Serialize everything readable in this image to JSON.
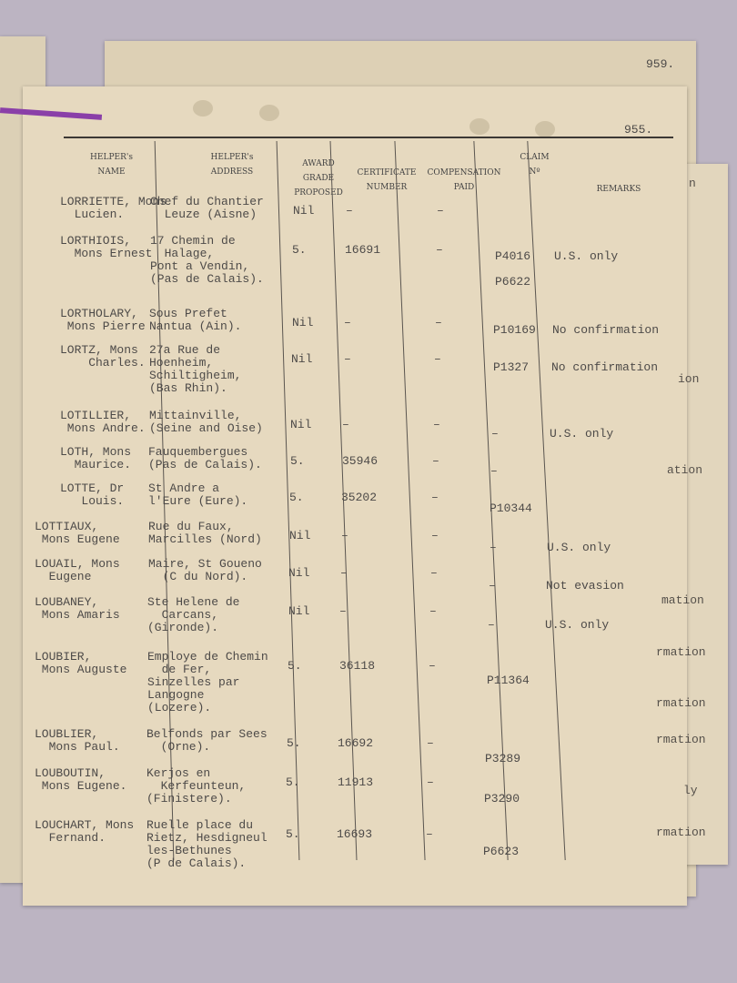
{
  "back_page": {
    "number": "959.",
    "fragments": [
      "n",
      "ion",
      "ation",
      "mation",
      "rmation",
      "rmation",
      "rmation",
      "ly",
      "rmation"
    ]
  },
  "page": {
    "number": "955.",
    "headers": [
      "HELPER's\nNAME",
      "HELPER's\nADDRESS",
      "AWARD\nGRADE\nPROPOSED",
      "CERTIFICATE\nNUMBER",
      "COMPENSATION\nPAID",
      "CLAIM\nNº",
      "REMARKS"
    ],
    "rows": [
      {
        "name": "LORRIETTE, Mons\n  Lucien.",
        "address": "Chef du Chantier\n  Leuze (Aisne)",
        "award": "Nil",
        "certificate": "–",
        "compensation": "–"
      },
      {
        "name": "LORTHIOIS,\n  Mons Ernest",
        "address": "17 Chemin de\n  Halage,\nPont a Vendin,\n(Pas de Calais).",
        "award": "5.",
        "certificate": "16691",
        "compensation": "–",
        "claim": "P4016\n\nP6622",
        "remarks": "U.S. only"
      },
      {
        "name": "LORTHOLARY,\n Mons Pierre",
        "address": "Sous Prefet\nNantua (Ain).",
        "award": "Nil",
        "certificate": "–",
        "compensation": "–",
        "claim": "P10169",
        "remarks": "No confirmation"
      },
      {
        "name": "LORTZ, Mons\n    Charles.",
        "address": "27a Rue de\nHoenheim,\nSchiltigheim,\n(Bas Rhin).",
        "award": "Nil",
        "certificate": "–",
        "compensation": "–",
        "claim": "P1327",
        "remarks": "No confirmation"
      },
      {
        "name": "LOTILLIER,\n Mons Andre.",
        "address": "Mittainville,\n(Seine and Oise)",
        "award": "Nil",
        "certificate": "–",
        "compensation": "–",
        "claim": "–",
        "remarks": "U.S. only"
      },
      {
        "name": "LOTH, Mons\n  Maurice.",
        "address": "Fauquembergues\n(Pas de Calais).",
        "award": "5.",
        "certificate": "35946",
        "compensation": "–",
        "claim": "–"
      },
      {
        "name": "LOTTE, Dr\n   Louis.",
        "address": "St Andre a\nl'Eure (Eure).",
        "award": "5.",
        "certificate": "35202",
        "compensation": "–",
        "claim": "P10344"
      },
      {
        "name": "LOTTIAUX,\n Mons Eugene",
        "address": "Rue du Faux,\nMarcilles (Nord)",
        "award": "Nil",
        "certificate": "–",
        "compensation": "–",
        "claim": "–",
        "remarks": "U.S. only"
      },
      {
        "name": "LOUAIL, Mons\n  Eugene",
        "address": "Maire, St Goueno\n  (C du Nord).",
        "award": "Nil",
        "certificate": "–",
        "compensation": "–",
        "claim": "–",
        "remarks": "Not evasion"
      },
      {
        "name": "LOUBANEY,\n Mons Amaris",
        "address": "Ste Helene de\n  Carcans,\n(Gironde).",
        "award": "Nil",
        "certificate": "–",
        "compensation": "–",
        "claim": "–",
        "remarks": "U.S. only"
      },
      {
        "name": "LOUBIER,\n Mons Auguste",
        "address": "Employe de Chemin\n  de Fer,\nSinzelles par\nLangogne\n(Lozere).",
        "award": "5.",
        "certificate": "36118",
        "compensation": "–",
        "claim": "P11364"
      },
      {
        "name": "LOUBLIER,\n  Mons Paul.",
        "address": "Belfonds par Sees\n  (Orne).",
        "award": "5.",
        "certificate": "16692",
        "compensation": "–",
        "claim": "P3289"
      },
      {
        "name": "LOUBOUTIN,\n Mons Eugene.",
        "address": "Kerjos en\n  Kerfeunteun,\n(Finistere).",
        "award": "5.",
        "certificate": "11913",
        "compensation": "–",
        "claim": "P3290"
      },
      {
        "name": "LOUCHART, Mons\n  Fernand.",
        "address": "Ruelle place du\nRietz, Hesdigneul\nles-Bethunes\n(P de Calais).",
        "award": "5.",
        "certificate": "16693",
        "compensation": "–",
        "claim": "P6623"
      }
    ]
  }
}
